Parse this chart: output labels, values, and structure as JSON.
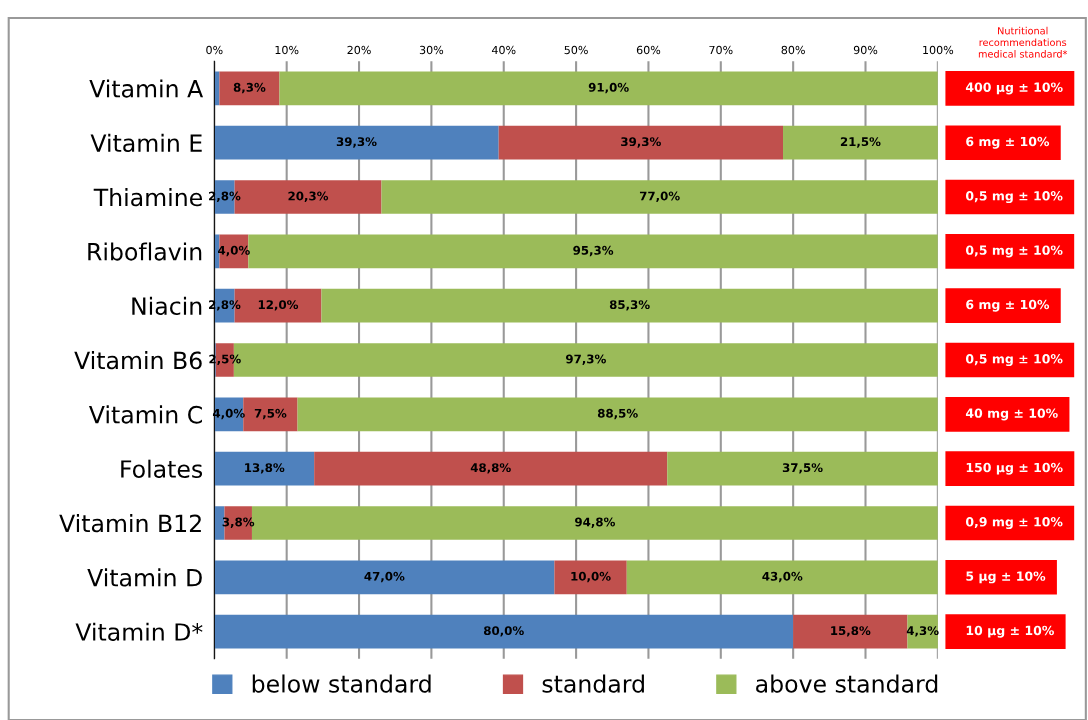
{
  "chart_data": {
    "type": "bar",
    "orientation": "horizontal",
    "stacked": true,
    "categories": [
      "Vitamin A",
      "Vitamin E",
      "Thiamine",
      "Riboflavin",
      "Niacin",
      "Vitamin B6",
      "Vitamin C",
      "Folates",
      "Vitamin B12",
      "Vitamin D",
      "Vitamin D*"
    ],
    "series": [
      {
        "name": "below standard",
        "color": "#4f81bd",
        "values": [
          0.7,
          39.3,
          2.8,
          0.7,
          2.8,
          0.2,
          4.0,
          13.8,
          1.4,
          47.0,
          80.0
        ],
        "value_labels": [
          null,
          "39,3%",
          "2,8%",
          null,
          "2,8%",
          null,
          "4,0%",
          "13,8%",
          null,
          "47,0%",
          "80,0%"
        ]
      },
      {
        "name": "standard",
        "color": "#c0504d",
        "values": [
          8.3,
          39.3,
          20.3,
          4.0,
          12.0,
          2.5,
          7.5,
          48.8,
          3.8,
          10.0,
          15.8
        ],
        "value_labels": [
          "8,3%",
          "39,3%",
          "20,3%",
          "4,0%",
          "12,0%",
          "2,5%",
          "7,5%",
          "48,8%",
          "3,8%",
          "10,0%",
          "15,8%"
        ]
      },
      {
        "name": "above standard",
        "color": "#9bbb59",
        "values": [
          91.0,
          21.5,
          77.0,
          95.3,
          85.3,
          97.3,
          88.5,
          37.5,
          94.8,
          43.0,
          4.3
        ],
        "value_labels": [
          "91,0%",
          "21,5%",
          "77,0%",
          "95,3%",
          "85,3%",
          "97,3%",
          "88,5%",
          "37,5%",
          "94,8%",
          "43,0%",
          "4,3%"
        ]
      }
    ],
    "xlim": [
      0,
      100
    ],
    "xticks": [
      {
        "value": 0,
        "label": "0%"
      },
      {
        "value": 10,
        "label": "10%"
      },
      {
        "value": 20,
        "label": "20%"
      },
      {
        "value": 30,
        "label": "30%"
      },
      {
        "value": 40,
        "label": "40%"
      },
      {
        "value": 50,
        "label": "50%"
      },
      {
        "value": 60,
        "label": "60%"
      },
      {
        "value": 70,
        "label": "70%"
      },
      {
        "value": 80,
        "label": "80%"
      },
      {
        "value": 90,
        "label": "90%"
      },
      {
        "value": 100,
        "label": "100%"
      }
    ],
    "grid": "x",
    "legend": "bottom",
    "annotations": [
      "Nutritional\nrecommendations\nmedical standard*",
      "400 µg ± 10%",
      "6 mg ± 10%",
      "0,5 mg ± 10%",
      "0,5 mg ± 10%",
      "6 mg ± 10%",
      "0,5 mg ± 10%",
      "40 mg ± 10%",
      "150 µg ± 10%",
      "0,9 mg ± 10%",
      "5 µg ± 10%",
      "10 µg ± 10%"
    ]
  }
}
